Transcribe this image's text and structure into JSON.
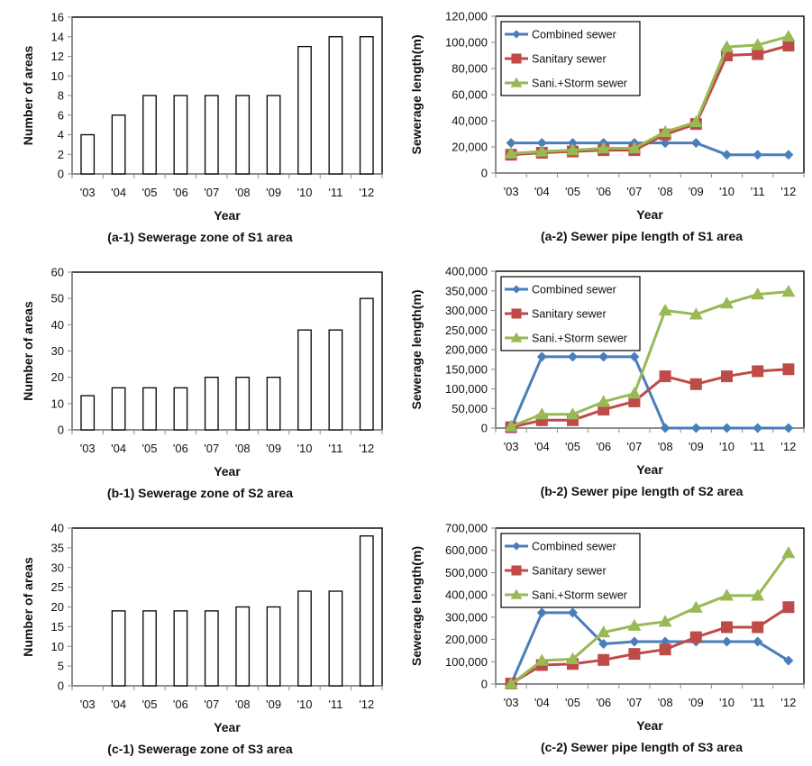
{
  "chart_data": [
    {
      "id": "a-1",
      "type": "bar",
      "title": "(a-1) Sewerage zone of S1 area",
      "xlabel": "Year",
      "ylabel": "Number of areas",
      "categories": [
        "'03",
        "'04",
        "'05",
        "'06",
        "'07",
        "'08",
        "'09",
        "'10",
        "'11",
        "'12"
      ],
      "values": [
        4,
        6,
        8,
        8,
        8,
        8,
        8,
        13,
        14,
        14
      ],
      "ylim": [
        0,
        16
      ],
      "yticks": [
        0,
        2,
        4,
        6,
        8,
        10,
        12,
        14,
        16
      ],
      "ytick_labels": [
        "0",
        "2",
        "4",
        "6",
        "8",
        "10",
        "12",
        "14",
        "16"
      ],
      "grid": false
    },
    {
      "id": "a-2",
      "type": "line",
      "title": "(a-2) Sewer pipe length of S1 area",
      "xlabel": "Year",
      "ylabel": "Sewerage length(m)",
      "categories": [
        "'03",
        "'04",
        "'05",
        "'06",
        "'07",
        "'08",
        "'09",
        "'10",
        "'11",
        "'12"
      ],
      "ylim": [
        0,
        120000
      ],
      "yticks": [
        0,
        20000,
        40000,
        60000,
        80000,
        100000,
        120000
      ],
      "ytick_labels": [
        "0",
        "20,000",
        "40,000",
        "60,000",
        "80,000",
        "100,000",
        "120,000"
      ],
      "legend_position": "top-left",
      "grid": false,
      "series": [
        {
          "name": "Combined sewer",
          "color": "#4a7ebb",
          "marker": "diamond",
          "values": [
            23000,
            23000,
            23000,
            23000,
            23000,
            23000,
            23000,
            14000,
            14000,
            14000
          ]
        },
        {
          "name": "Sanitary sewer",
          "color": "#be4b48",
          "marker": "square",
          "values": [
            14000,
            15500,
            16500,
            17500,
            17500,
            29500,
            37500,
            90000,
            91000,
            97500
          ]
        },
        {
          "name": "Sani.+Storm sewer",
          "color": "#98b954",
          "marker": "triangle",
          "values": [
            15000,
            16500,
            17500,
            19000,
            19000,
            31500,
            39000,
            96500,
            98000,
            104500
          ]
        }
      ]
    },
    {
      "id": "b-1",
      "type": "bar",
      "title": "(b-1) Sewerage zone of S2 area",
      "xlabel": "Year",
      "ylabel": "Number of areas",
      "categories": [
        "'03",
        "'04",
        "'05",
        "'06",
        "'07",
        "'08",
        "'09",
        "'10",
        "'11",
        "'12"
      ],
      "values": [
        13,
        16,
        16,
        16,
        20,
        20,
        20,
        38,
        38,
        50
      ],
      "ylim": [
        0,
        60
      ],
      "yticks": [
        0,
        10,
        20,
        30,
        40,
        50,
        60
      ],
      "ytick_labels": [
        "0",
        "10",
        "20",
        "30",
        "40",
        "50",
        "60"
      ],
      "grid": false
    },
    {
      "id": "b-2",
      "type": "line",
      "title": "(b-2) Sewer pipe length of S2 area",
      "xlabel": "Year",
      "ylabel": "Sewerage length(m)",
      "categories": [
        "'03",
        "'04",
        "'05",
        "'06",
        "'07",
        "'08",
        "'09",
        "'10",
        "'11",
        "'12"
      ],
      "ylim": [
        0,
        400000
      ],
      "yticks": [
        0,
        50000,
        100000,
        150000,
        200000,
        250000,
        300000,
        350000,
        400000
      ],
      "ytick_labels": [
        "0",
        "50,000",
        "100,000",
        "150,000",
        "200,000",
        "250,000",
        "300,000",
        "350,000",
        "400,000"
      ],
      "legend_position": "top-left",
      "grid": false,
      "series": [
        {
          "name": "Combined sewer",
          "color": "#4a7ebb",
          "marker": "diamond",
          "values": [
            0,
            182000,
            182000,
            182000,
            182000,
            0,
            0,
            0,
            0,
            0
          ]
        },
        {
          "name": "Sanitary sewer",
          "color": "#be4b48",
          "marker": "square",
          "values": [
            2000,
            20000,
            20000,
            47000,
            68000,
            132000,
            112000,
            132000,
            145000,
            150000
          ]
        },
        {
          "name": "Sani.+Storm sewer",
          "color": "#98b954",
          "marker": "triangle",
          "values": [
            4000,
            35000,
            35000,
            67000,
            88000,
            300000,
            290000,
            318000,
            341000,
            348000
          ]
        }
      ]
    },
    {
      "id": "c-1",
      "type": "bar",
      "title": "(c-1) Sewerage zone of S3 area",
      "xlabel": "Year",
      "ylabel": "Number of areas",
      "categories": [
        "'03",
        "'04",
        "'05",
        "'06",
        "'07",
        "'08",
        "'09",
        "'10",
        "'11",
        "'12"
      ],
      "values": [
        0,
        19,
        19,
        19,
        19,
        20,
        20,
        24,
        24,
        38
      ],
      "ylim": [
        0,
        40
      ],
      "yticks": [
        0,
        5,
        10,
        15,
        20,
        25,
        30,
        35,
        40
      ],
      "ytick_labels": [
        "0",
        "5",
        "10",
        "15",
        "20",
        "25",
        "30",
        "35",
        "40"
      ],
      "grid": false
    },
    {
      "id": "c-2",
      "type": "line",
      "title": "(c-2) Sewer pipe length of S3 area",
      "xlabel": "Year",
      "ylabel": "Sewerage length(m)",
      "categories": [
        "'03",
        "'04",
        "'05",
        "'06",
        "'07",
        "'08",
        "'09",
        "'10",
        "'11",
        "'12"
      ],
      "ylim": [
        0,
        700000
      ],
      "yticks": [
        0,
        100000,
        200000,
        300000,
        400000,
        500000,
        600000,
        700000
      ],
      "ytick_labels": [
        "0",
        "100,000",
        "200,000",
        "300,000",
        "400,000",
        "500,000",
        "600,000",
        "700,000"
      ],
      "legend_position": "top-left",
      "grid": false,
      "series": [
        {
          "name": "Combined sewer",
          "color": "#4a7ebb",
          "marker": "diamond",
          "values": [
            0,
            320000,
            320000,
            180000,
            190000,
            190000,
            190000,
            190000,
            190000,
            105000
          ]
        },
        {
          "name": "Sanitary sewer",
          "color": "#be4b48",
          "marker": "square",
          "values": [
            2000,
            85000,
            90000,
            108000,
            135000,
            155000,
            210000,
            255000,
            255000,
            345000
          ]
        },
        {
          "name": "Sani.+Storm sewer",
          "color": "#98b954",
          "marker": "triangle",
          "values": [
            0,
            105000,
            112000,
            232000,
            262000,
            280000,
            343000,
            397000,
            397000,
            588000
          ]
        }
      ]
    }
  ]
}
